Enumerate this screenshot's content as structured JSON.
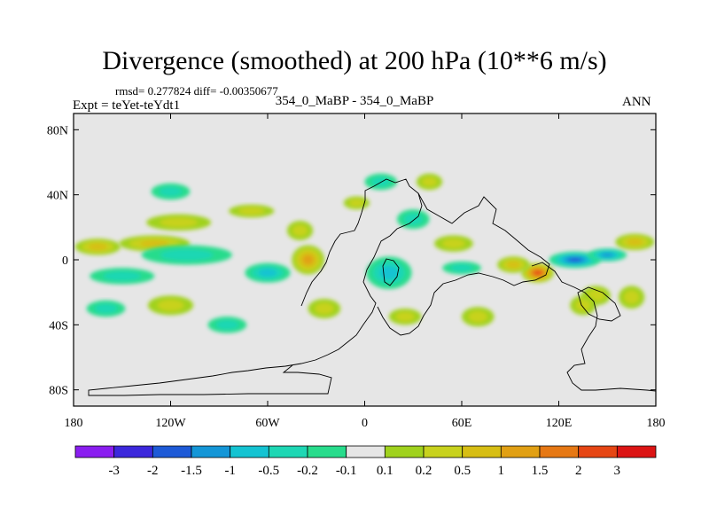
{
  "chart_data": {
    "type": "heatmap",
    "title": "Divergence (smoothed) at 200 hPa (10**6 m/s)",
    "stats_text": "rmsd= 0.277824 diff= -0.00350677",
    "subtitle": "354_0_MaBP - 354_0_MaBP",
    "experiment_text": "Expt = teYet-teYdt1",
    "season": "ANN",
    "projection": "cylindrical equidistant",
    "xlim": [
      -180,
      180
    ],
    "ylim": [
      -90,
      90
    ],
    "x_ticks": [
      {
        "value": -180,
        "label": "180"
      },
      {
        "value": -120,
        "label": "120W"
      },
      {
        "value": -60,
        "label": "60W"
      },
      {
        "value": 0,
        "label": "0"
      },
      {
        "value": 60,
        "label": "60E"
      },
      {
        "value": 120,
        "label": "120E"
      },
      {
        "value": 180,
        "label": "180"
      }
    ],
    "y_ticks": [
      {
        "value": 80,
        "label": "80N"
      },
      {
        "value": 40,
        "label": "40N"
      },
      {
        "value": 0,
        "label": "0"
      },
      {
        "value": -40,
        "label": "40S"
      },
      {
        "value": -80,
        "label": "80S"
      }
    ],
    "colorbar": {
      "colors": [
        "#8a1ef0",
        "#3c28dc",
        "#1e5ad7",
        "#1496d7",
        "#14c3d2",
        "#1ed7b4",
        "#28dc8c",
        "#e6e6e6",
        "#a0d21e",
        "#c8d21e",
        "#d7be14",
        "#e1a014",
        "#e67814",
        "#e64614",
        "#dc1414"
      ],
      "levels": [
        "-3",
        "-2",
        "-1.5",
        "-1",
        "-0.5",
        "-0.2",
        "-0.1",
        "0.1",
        "0.2",
        "0.5",
        "1",
        "1.5",
        "2",
        "3"
      ]
    },
    "anomalies": [
      {
        "lon": 107,
        "lat": -8,
        "rx": 10,
        "ry": 6,
        "value": 2.5
      },
      {
        "lon": 130,
        "lat": 0,
        "rx": 16,
        "ry": 5,
        "value": -1.8
      },
      {
        "lon": 150,
        "lat": 3,
        "rx": 12,
        "ry": 4,
        "value": -1.1
      },
      {
        "lon": 92,
        "lat": -3,
        "rx": 10,
        "ry": 5,
        "value": 0.7
      },
      {
        "lon": 167,
        "lat": 11,
        "rx": 12,
        "ry": 5,
        "value": 0.5
      },
      {
        "lon": 165,
        "lat": -23,
        "rx": 8,
        "ry": 7,
        "value": 0.4
      },
      {
        "lon": 143,
        "lat": -22,
        "rx": 9,
        "ry": 6,
        "value": 0.3
      },
      {
        "lon": -165,
        "lat": 8,
        "rx": 14,
        "ry": 5,
        "value": 0.6
      },
      {
        "lon": -130,
        "lat": 10,
        "rx": 22,
        "ry": 5,
        "value": 0.5
      },
      {
        "lon": -115,
        "lat": 23,
        "rx": 20,
        "ry": 5,
        "value": 0.35
      },
      {
        "lon": -110,
        "lat": 3,
        "rx": 28,
        "ry": 6,
        "value": -0.4
      },
      {
        "lon": -150,
        "lat": -10,
        "rx": 20,
        "ry": 5,
        "value": -0.35
      },
      {
        "lon": -120,
        "lat": -28,
        "rx": 14,
        "ry": 6,
        "value": 0.4
      },
      {
        "lon": -160,
        "lat": -30,
        "rx": 12,
        "ry": 5,
        "value": -0.35
      },
      {
        "lon": -35,
        "lat": 0,
        "rx": 10,
        "ry": 9,
        "value": 1.1
      },
      {
        "lon": -60,
        "lat": -8,
        "rx": 14,
        "ry": 6,
        "value": -0.6
      },
      {
        "lon": -40,
        "lat": 18,
        "rx": 8,
        "ry": 6,
        "value": 0.4
      },
      {
        "lon": -70,
        "lat": 30,
        "rx": 14,
        "ry": 4,
        "value": 0.3
      },
      {
        "lon": -25,
        "lat": -30,
        "rx": 10,
        "ry": 6,
        "value": 0.35
      },
      {
        "lon": -85,
        "lat": -40,
        "rx": 12,
        "ry": 5,
        "value": -0.3
      },
      {
        "lon": 15,
        "lat": -8,
        "rx": 14,
        "ry": 10,
        "value": -0.5
      },
      {
        "lon": 30,
        "lat": 25,
        "rx": 10,
        "ry": 6,
        "value": -0.3
      },
      {
        "lon": 25,
        "lat": -35,
        "rx": 10,
        "ry": 5,
        "value": 0.35
      },
      {
        "lon": 55,
        "lat": 10,
        "rx": 12,
        "ry": 5,
        "value": 0.4
      },
      {
        "lon": 60,
        "lat": -5,
        "rx": 12,
        "ry": 4,
        "value": -0.35
      },
      {
        "lon": 70,
        "lat": -35,
        "rx": 10,
        "ry": 6,
        "value": 0.3
      },
      {
        "lon": 10,
        "lat": 48,
        "rx": 10,
        "ry": 5,
        "value": -0.3
      },
      {
        "lon": 40,
        "lat": 48,
        "rx": 8,
        "ry": 5,
        "value": 0.25
      },
      {
        "lon": -120,
        "lat": 42,
        "rx": 12,
        "ry": 5,
        "value": -0.3
      },
      {
        "lon": 135,
        "lat": -28,
        "rx": 8,
        "ry": 6,
        "value": 0.3
      },
      {
        "lon": -5,
        "lat": 35,
        "rx": 8,
        "ry": 4,
        "value": 0.3
      }
    ]
  }
}
